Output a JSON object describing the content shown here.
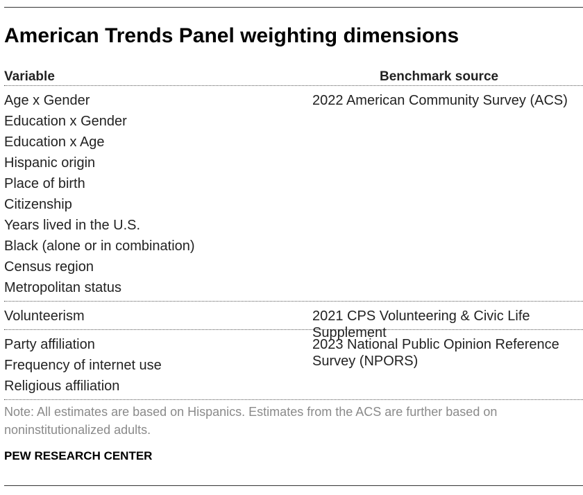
{
  "title": "American Trends Panel weighting dimensions",
  "table": {
    "headers": {
      "variable": "Variable",
      "source": "Benchmark source"
    },
    "groups": [
      {
        "variables": [
          "Age x Gender",
          "Education x Gender",
          "Education x Age",
          "Hispanic origin",
          "Place of birth",
          "Citizenship",
          "Years lived in the U.S.",
          "Black (alone or in combination)",
          "Census region",
          "Metropolitan status"
        ],
        "source": "2022 American Community Survey (ACS)"
      },
      {
        "variables": [
          "Volunteerism"
        ],
        "source": "2021 CPS Volunteering & Civic Life Supplement"
      },
      {
        "variables": [
          "Party affiliation",
          "Frequency of internet use",
          "Religious affiliation"
        ],
        "source": "2023 National Public Opinion Reference Survey (NPORS)"
      }
    ]
  },
  "note": "Note: All estimates are based on Hispanics. Estimates from the ACS are further based on noninstitutionalized adults.",
  "org": "PEW RESEARCH CENTER"
}
